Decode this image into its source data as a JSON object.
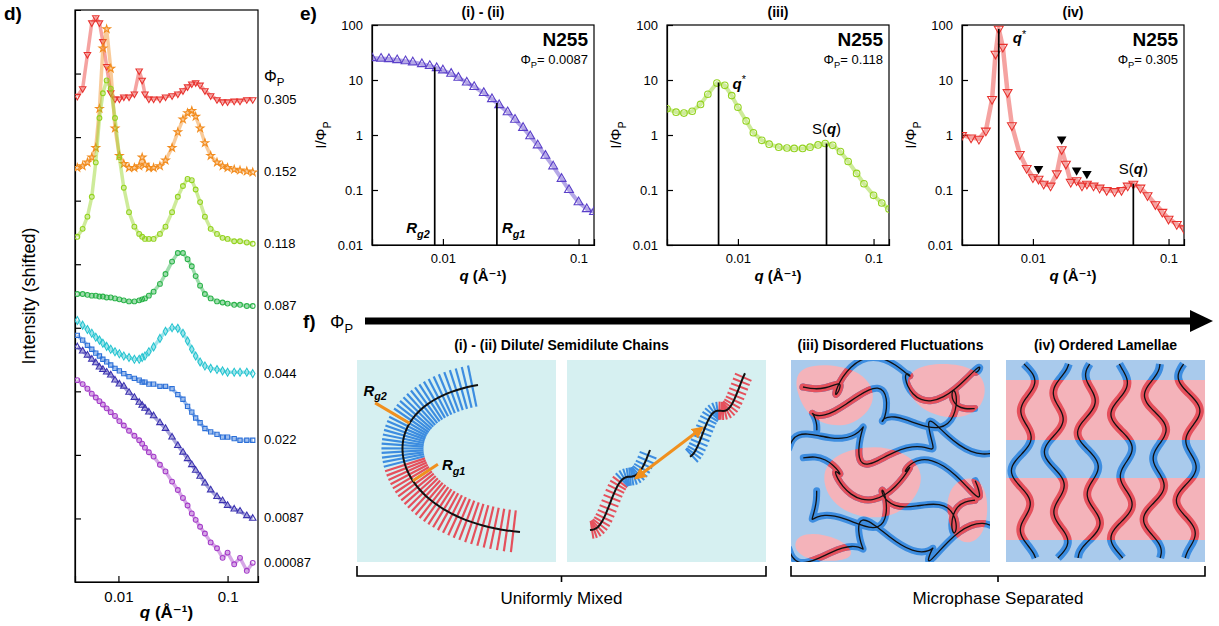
{
  "chart_data": [
    {
      "panel": "d)",
      "type": "line",
      "xlabel": "q (Å⁻¹)",
      "ylabel": "Intensity (shifted)",
      "log": true,
      "xlim": [
        0.004,
        0.19
      ],
      "ylim": [
        0.0001,
        100000
      ],
      "xticks": [
        0.01,
        0.1
      ],
      "yticks": [
        0.001,
        0.01,
        0.1,
        1,
        10,
        100,
        1000,
        10000
      ],
      "tick_labels": "x",
      "legend": "right",
      "legend_title": "ΦP",
      "x": [
        0.0042,
        0.0047,
        0.0052,
        0.0057,
        0.0062,
        0.0067,
        0.0072,
        0.0078,
        0.0085,
        0.0093,
        0.0102,
        0.0112,
        0.0125,
        0.014,
        0.0155,
        0.0165,
        0.0175,
        0.019,
        0.021,
        0.024,
        0.027,
        0.031,
        0.035,
        0.039,
        0.043,
        0.047,
        0.051,
        0.056,
        0.062,
        0.07,
        0.08,
        0.09,
        0.1,
        0.115,
        0.13,
        0.15,
        0.17
      ],
      "series": [
        {
          "name": "0.305",
          "color": "#e8322e",
          "marker": "triangle-down",
          "values": [
            4400,
            5800,
            20000,
            63000,
            76000,
            63000,
            32000,
            13000,
            5000,
            4000,
            4000,
            4300,
            4300,
            4800,
            11000,
            7900,
            4800,
            4000,
            4000,
            4000,
            4300,
            4500,
            4800,
            5400,
            6200,
            6900,
            7200,
            6600,
            5400,
            4500,
            3900,
            3600,
            3600,
            3700,
            3700,
            3900,
            3900
          ]
        },
        {
          "name": "0.152",
          "color": "#f28c1e",
          "marker": "star",
          "values": [
            330,
            350,
            400,
            480,
            680,
            2800,
            25000,
            50000,
            12000,
            1380,
            510,
            380,
            330,
            330,
            350,
            480,
            370,
            330,
            330,
            350,
            430,
            680,
            1200,
            1900,
            2400,
            2600,
            2100,
            1380,
            810,
            510,
            400,
            350,
            330,
            310,
            300,
            290,
            280
          ]
        },
        {
          "name": "0.118",
          "color": "#93d31f",
          "marker": "circle",
          "values": [
            27,
            36,
            56,
            115,
            400,
            2000,
            4900,
            7800,
            5800,
            2000,
            480,
            160,
            66,
            39,
            30,
            27,
            25,
            25,
            25,
            30,
            39,
            66,
            115,
            170,
            220,
            210,
            150,
            95,
            56,
            36,
            30,
            26,
            25,
            23,
            23,
            22,
            21
          ]
        },
        {
          "name": "0.087",
          "color": "#2bb34a",
          "marker": "circle",
          "values": [
            3.4,
            3.4,
            3.3,
            3.2,
            3.2,
            3.1,
            3.1,
            3.0,
            3.0,
            2.9,
            2.8,
            2.7,
            2.6,
            2.6,
            2.7,
            2.8,
            2.9,
            3.2,
            3.7,
            4.9,
            7.0,
            11,
            15,
            15,
            12,
            9.3,
            6.5,
            4.6,
            3.4,
            2.9,
            2.6,
            2.5,
            2.4,
            2.3,
            2.3,
            2.2,
            2.2
          ]
        },
        {
          "name": "0.044",
          "color": "#25c4d0",
          "marker": "diamond",
          "values": [
            1.3,
            1.1,
            0.94,
            0.82,
            0.71,
            0.64,
            0.57,
            0.51,
            0.46,
            0.42,
            0.39,
            0.36,
            0.34,
            0.32,
            0.32,
            0.34,
            0.36,
            0.42,
            0.5,
            0.68,
            0.88,
            1.0,
            0.98,
            0.82,
            0.62,
            0.46,
            0.36,
            0.29,
            0.25,
            0.23,
            0.22,
            0.21,
            0.2,
            0.2,
            0.2,
            0.2,
            0.19
          ]
        },
        {
          "name": "0.022",
          "color": "#2b6fd8",
          "marker": "square",
          "values": [
            0.76,
            0.64,
            0.53,
            0.46,
            0.4,
            0.36,
            0.32,
            0.29,
            0.26,
            0.23,
            0.21,
            0.19,
            0.17,
            0.16,
            0.15,
            0.14,
            0.14,
            0.13,
            0.13,
            0.12,
            0.12,
            0.11,
            0.089,
            0.075,
            0.058,
            0.047,
            0.038,
            0.032,
            0.026,
            0.023,
            0.021,
            0.019,
            0.019,
            0.018,
            0.017,
            0.017,
            0.017
          ]
        },
        {
          "name": "0.0087",
          "color": "#3b32b0",
          "marker": "triangle",
          "values": [
            0.5,
            0.43,
            0.37,
            0.32,
            0.28,
            0.24,
            0.22,
            0.2,
            0.18,
            0.15,
            0.13,
            0.12,
            0.096,
            0.08,
            0.067,
            0.06,
            0.054,
            0.047,
            0.041,
            0.032,
            0.026,
            0.019,
            0.014,
            0.011,
            0.0087,
            0.007,
            0.0057,
            0.0046,
            0.0036,
            0.0028,
            0.0022,
            0.0019,
            0.0016,
            0.0014,
            0.0013,
            0.0011,
            0.001
          ]
        },
        {
          "name": "0.00087",
          "color": "#a43cc8",
          "marker": "circle",
          "values": [
            0.15,
            0.13,
            0.11,
            0.092,
            0.08,
            0.07,
            0.062,
            0.054,
            0.047,
            0.041,
            0.034,
            0.029,
            0.024,
            0.02,
            0.017,
            0.015,
            0.013,
            0.011,
            0.0094,
            0.007,
            0.0055,
            0.0038,
            0.0028,
            0.0021,
            0.0016,
            0.0012,
            0.00095,
            0.00074,
            0.00058,
            0.00042,
            0.00034,
            0.00024,
            0.00029,
            0.00019,
            0.00024,
            0.00015,
            0.0002
          ]
        }
      ]
    },
    {
      "panel": "e)",
      "title": "(i) - (ii)",
      "type": "line",
      "xlabel": "q (Å⁻¹)",
      "ylabel": "I/ΦP",
      "log": true,
      "xlim": [
        0.003,
        0.13
      ],
      "ylim": [
        0.01,
        100
      ],
      "xticks": [
        0.01,
        0.1
      ],
      "yticks": [
        0.01,
        0.1,
        1,
        10,
        100
      ],
      "annotations": [
        "N255",
        "ΦP= 0.0087"
      ],
      "series": [
        {
          "color": "#5a3fc9",
          "marker": "triangle",
          "x": [
            0.003,
            0.0035,
            0.004,
            0.0046,
            0.0053,
            0.006,
            0.007,
            0.008,
            0.009,
            0.01,
            0.0115,
            0.013,
            0.015,
            0.017,
            0.02,
            0.023,
            0.026,
            0.03,
            0.034,
            0.039,
            0.044,
            0.05,
            0.057,
            0.065,
            0.075,
            0.085,
            0.1,
            0.115,
            0.13
          ],
          "values": [
            25,
            24.5,
            24,
            23,
            22,
            21,
            19.5,
            18,
            16.5,
            15,
            13,
            11,
            9,
            7.5,
            5.8,
            4.5,
            3.5,
            2.6,
            1.9,
            1.35,
            0.95,
            0.65,
            0.42,
            0.27,
            0.16,
            0.1,
            0.06,
            0.045,
            0.04
          ]
        }
      ],
      "reference_lines": [
        {
          "label": "Rg2",
          "x": 0.0087,
          "y": 17
        },
        {
          "label": "Rg1",
          "x": 0.025,
          "y": 3.8
        }
      ]
    },
    {
      "title": "(iii)",
      "type": "line",
      "xlabel": "q (Å⁻¹)",
      "ylabel": "I/ΦP",
      "log": true,
      "xlim": [
        0.003,
        0.13
      ],
      "ylim": [
        0.01,
        100
      ],
      "xticks": [
        0.01,
        0.1
      ],
      "yticks": [
        0.01,
        0.1,
        1,
        10,
        100
      ],
      "annotations": [
        "N255",
        "ΦP= 0.118"
      ],
      "series": [
        {
          "color": "#93d31f",
          "marker": "circle",
          "x": [
            0.003,
            0.0035,
            0.004,
            0.0046,
            0.0053,
            0.006,
            0.007,
            0.008,
            0.009,
            0.01,
            0.0115,
            0.013,
            0.015,
            0.017,
            0.02,
            0.023,
            0.026,
            0.03,
            0.034,
            0.039,
            0.044,
            0.05,
            0.057,
            0.065,
            0.075,
            0.085,
            0.1,
            0.115,
            0.13
          ],
          "values": [
            3.0,
            2.6,
            2.5,
            2.7,
            3.6,
            5.5,
            8.8,
            8.0,
            5.2,
            3.2,
            1.8,
            1.1,
            0.8,
            0.68,
            0.6,
            0.58,
            0.57,
            0.57,
            0.6,
            0.66,
            0.7,
            0.65,
            0.5,
            0.33,
            0.2,
            0.13,
            0.08,
            0.058,
            0.045
          ]
        }
      ],
      "reference_lines": [
        {
          "label": "q*",
          "x": 0.0072,
          "y": 9
        },
        {
          "label": "S(q)",
          "x": 0.045,
          "y": 0.7
        }
      ]
    },
    {
      "title": "(iv)",
      "type": "line",
      "xlabel": "q (Å⁻¹)",
      "ylabel": "I/ΦP",
      "log": true,
      "xlim": [
        0.003,
        0.13
      ],
      "ylim": [
        0.01,
        100
      ],
      "xticks": [
        0.01,
        0.1
      ],
      "yticks": [
        0.01,
        0.1,
        1,
        10,
        100
      ],
      "annotations": [
        "N255",
        "ΦP= 0.305"
      ],
      "series": [
        {
          "color": "#e8322e",
          "marker": "triangle-down",
          "x": [
            0.003,
            0.0035,
            0.004,
            0.0045,
            0.005,
            0.0053,
            0.0056,
            0.006,
            0.0065,
            0.007,
            0.008,
            0.009,
            0.01,
            0.011,
            0.012,
            0.0135,
            0.015,
            0.0163,
            0.0175,
            0.019,
            0.021,
            0.023,
            0.025,
            0.028,
            0.031,
            0.035,
            0.04,
            0.045,
            0.05,
            0.055,
            0.062,
            0.07,
            0.08,
            0.09,
            0.1,
            0.115,
            0.13
          ],
          "values": [
            1.0,
            0.9,
            0.85,
            1.2,
            4.5,
            30,
            85,
            40,
            6,
            1.5,
            0.45,
            0.25,
            0.17,
            0.16,
            0.13,
            0.12,
            0.2,
            0.55,
            0.3,
            0.14,
            0.15,
            0.12,
            0.13,
            0.12,
            0.11,
            0.1,
            0.095,
            0.1,
            0.12,
            0.13,
            0.11,
            0.08,
            0.055,
            0.04,
            0.03,
            0.024,
            0.02
          ]
        }
      ],
      "reference_lines": [
        {
          "label": "q*",
          "x": 0.0056,
          "y": 85
        },
        {
          "label": "S(q)",
          "x": 0.055,
          "y": 0.13
        }
      ],
      "peak_markers": {
        "x": [
          0.011,
          0.0163,
          0.021,
          0.025
        ],
        "values": [
          0.16,
          0.55,
          0.15,
          0.13
        ]
      }
    }
  ],
  "diagram": {
    "panel": "f)",
    "arrow_label": "ΦP",
    "regimes": [
      "(i) - (ii) Dilute/ Semidilute Chains",
      "(iii) Disordered Fluctuations",
      "(iv) Ordered Lamellae"
    ],
    "radius_labels": [
      "Rg2",
      "Rg1"
    ],
    "groups": [
      "Uniformly Mixed",
      "Microphase Separated"
    ]
  }
}
